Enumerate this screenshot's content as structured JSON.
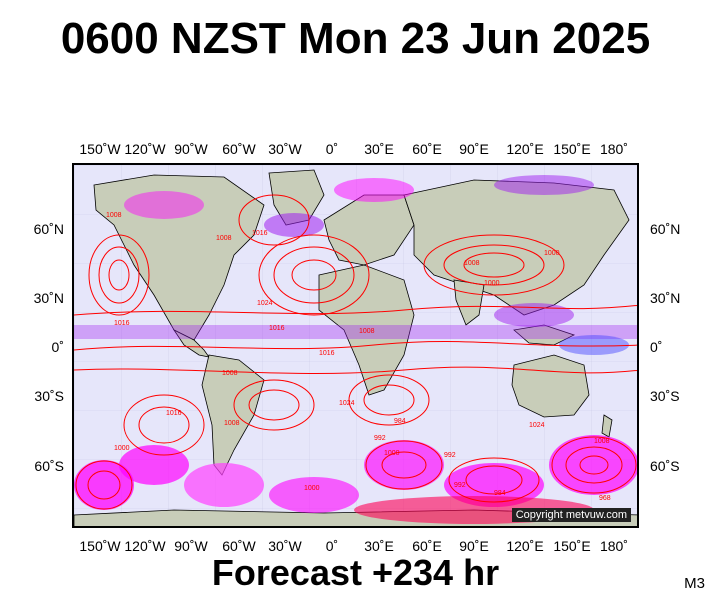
{
  "title": "0600 NZST Mon 23 Jun 2025",
  "footer": "Forecast +234 hr",
  "model_tag": "M3",
  "copyright": "Copyright metvuw.com",
  "lon_labels": [
    "150˚W",
    "120˚W",
    "90˚W",
    "60˚W",
    "30˚W",
    "0˚",
    "30˚E",
    "60˚E",
    "90˚E",
    "120˚E",
    "150˚E",
    "180˚"
  ],
  "lat_labels_left": [
    "60˚N",
    "30˚N",
    "0˚",
    "30˚S",
    "60˚S"
  ],
  "lat_labels_right": [
    "60˚N",
    "30˚N",
    "0˚",
    "30˚S",
    "60˚S"
  ],
  "isobar_labels": [
    "1008",
    "1016",
    "1008",
    "1024",
    "1016",
    "1008",
    "1016",
    "1000",
    "1008",
    "1000",
    "992",
    "984",
    "1000",
    "992",
    "1024",
    "1016",
    "1008",
    "1000",
    "992",
    "984",
    "968",
    "1008",
    "1016",
    "1024",
    "1008",
    "1000"
  ],
  "colors": {
    "ocean": "#e6e6fa",
    "land": "#c8cdb9",
    "isobar": "#ff0000",
    "precip_heavy": "#ff00ff",
    "precip_mid": "#a020f0",
    "precip_light": "#4040ff"
  }
}
